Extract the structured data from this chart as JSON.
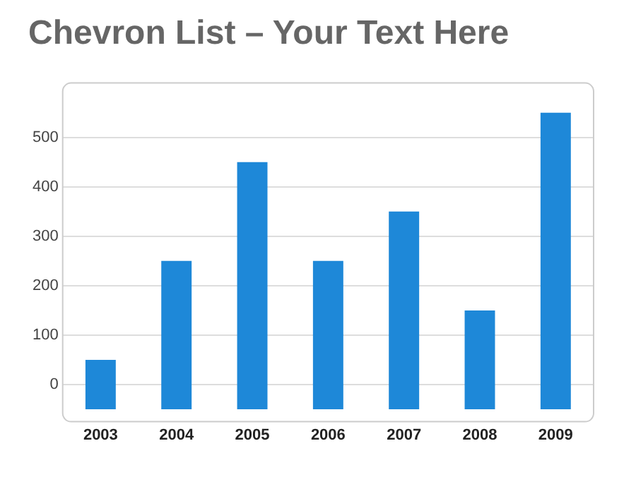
{
  "chart_data": {
    "type": "bar",
    "title": "Chevron List – Your Text Here",
    "categories": [
      "2003",
      "2004",
      "2005",
      "2006",
      "2007",
      "2008",
      "2009"
    ],
    "values": [
      100,
      300,
      500,
      300,
      400,
      200,
      600
    ],
    "base": [
      -50,
      -50,
      -50,
      -50,
      -50,
      -50,
      -50
    ],
    "color": "#1e88d8",
    "ylim": [
      -75,
      610
    ],
    "yticks": [
      0,
      100,
      200,
      300,
      400,
      500
    ],
    "grid": "y"
  }
}
